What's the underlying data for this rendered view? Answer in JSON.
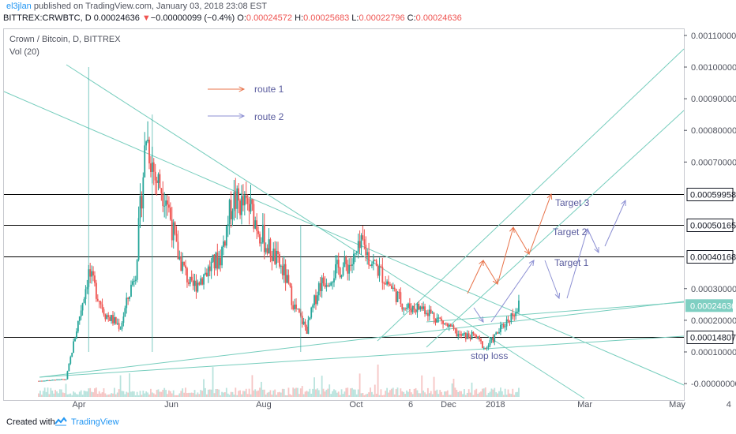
{
  "header": {
    "author": "el3jlan",
    "published_text": " published on TradingView.com, January 03, 2018 23:08 EST",
    "symbol": "BITTREX:CRWBTC, D",
    "price": "0.00024636",
    "change_arrow": "▼",
    "change": "−0.00000099 (−0.4%)",
    "o_label": "O:",
    "o_value": "0.00024572",
    "h_label": "H:",
    "h_value": "0.00025683",
    "l_label": "L:",
    "l_value": "0.00022796",
    "c_label": "C:",
    "c_value": "0.00024636"
  },
  "chart_title": "Crown / Bitcoin, D, BITTREX",
  "volume_label": "Vol (20)",
  "footer": {
    "created_with": "Created with",
    "brand": "TradingView"
  },
  "colors": {
    "up": "#26a69a",
    "down": "#ef5350",
    "trend": "#76cdbd",
    "level": "#000000",
    "route1": "#e8734a",
    "route2": "#8c8fd3",
    "label": "#5a5c9e",
    "price_tag": "#7fcfc2"
  },
  "chart_data": {
    "type": "candlestick",
    "title": "Crown / Bitcoin, D, BITTREX",
    "x_ticks": [
      "Apr",
      "Jun",
      "Aug",
      "Oct",
      "6",
      "Dec",
      "2018",
      "Mar",
      "May",
      "4"
    ],
    "y_ticks": [
      "0.00110000",
      "0.00100000",
      "0.00090000",
      "0.00080000",
      "0.00070000",
      "0.00030000",
      "0.00020000",
      "0.00010000",
      "-0.00000000"
    ],
    "ylim": [
      -2e-05,
      0.0011
    ],
    "last_price": "0.00024636",
    "levels": [
      {
        "value": 0.00059958,
        "label": "0.00059958"
      },
      {
        "value": 0.00050165,
        "label": "0.00050165"
      },
      {
        "value": 0.00040168,
        "label": "0.00040168"
      },
      {
        "value": 0.00014807,
        "label": "0.00014807"
      }
    ],
    "anchors": [
      {
        "x": "2017-02-20",
        "y": 8.5e-06
      },
      {
        "x": "2017-03-10",
        "y": 1.4e-05
      },
      {
        "x": "2017-03-25",
        "y": 0.00035
      },
      {
        "x": "2017-04-05",
        "y": 0.00022
      },
      {
        "x": "2017-04-15",
        "y": 0.00018
      },
      {
        "x": "2017-04-25",
        "y": 0.00036
      },
      {
        "x": "2017-05-02",
        "y": 0.00079
      },
      {
        "x": "2017-05-08",
        "y": 0.00065
      },
      {
        "x": "2017-05-15",
        "y": 0.0006
      },
      {
        "x": "2017-05-22",
        "y": 0.00042
      },
      {
        "x": "2017-06-01",
        "y": 0.0003
      },
      {
        "x": "2017-06-10",
        "y": 0.00035
      },
      {
        "x": "2017-06-20",
        "y": 0.0004
      },
      {
        "x": "2017-06-28",
        "y": 0.00058
      },
      {
        "x": "2017-07-10",
        "y": 0.00055
      },
      {
        "x": "2017-07-20",
        "y": 0.00044
      },
      {
        "x": "2017-08-01",
        "y": 0.00035
      },
      {
        "x": "2017-08-08",
        "y": 0.00024
      },
      {
        "x": "2017-08-16",
        "y": 0.00017
      },
      {
        "x": "2017-08-24",
        "y": 0.00031
      },
      {
        "x": "2017-09-05",
        "y": 0.00036
      },
      {
        "x": "2017-09-15",
        "y": 0.00038
      },
      {
        "x": "2017-09-22",
        "y": 0.00044
      },
      {
        "x": "2017-09-26",
        "y": 0.0004
      },
      {
        "x": "2017-10-10",
        "y": 0.00031
      },
      {
        "x": "2017-10-20",
        "y": 0.00024
      },
      {
        "x": "2017-11-01",
        "y": 0.00024
      },
      {
        "x": "2017-11-12",
        "y": 0.0002
      },
      {
        "x": "2017-11-25",
        "y": 0.00015
      },
      {
        "x": "2017-12-05",
        "y": 0.00015
      },
      {
        "x": "2017-12-12",
        "y": 0.00011
      },
      {
        "x": "2017-12-20",
        "y": 0.00016
      },
      {
        "x": "2017-12-28",
        "y": 0.00021
      },
      {
        "x": "2018-01-03",
        "y": 0.00024636
      }
    ],
    "annotations": {
      "route1": "route 1",
      "route2": "route 2",
      "target1": "Target 1",
      "target2": "Target 2",
      "target3": "Target 3",
      "stop_loss": "stop loss"
    }
  }
}
